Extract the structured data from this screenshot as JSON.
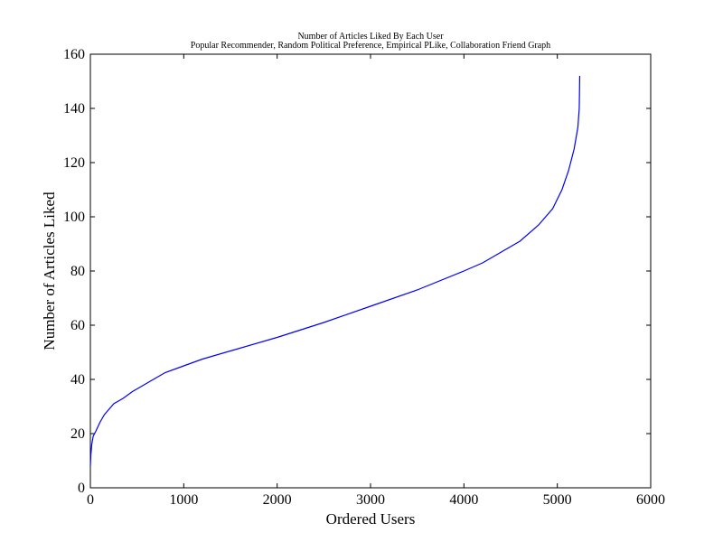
{
  "chart_data": {
    "type": "line",
    "title": "Number of Articles Liked By Each User",
    "subtitle": "Popular Recommender, Random Political Preference, Empirical PLike, Collaboration Friend Graph",
    "xlabel": "Ordered Users",
    "ylabel": "Number of Articles Liked",
    "xlim": [
      0,
      6000
    ],
    "ylim": [
      0,
      160
    ],
    "x_ticks": [
      "0",
      "1000",
      "2000",
      "3000",
      "4000",
      "5000",
      "6000"
    ],
    "y_ticks": [
      "0",
      "20",
      "40",
      "60",
      "80",
      "100",
      "120",
      "140",
      "160"
    ],
    "grid": false,
    "line_color": "#0000ff",
    "series": [
      {
        "values": [
          {
            "x": 0,
            "y": 8
          },
          {
            "x": 5,
            "y": 12
          },
          {
            "x": 15,
            "y": 16
          },
          {
            "x": 30,
            "y": 19
          },
          {
            "x": 60,
            "y": 21
          },
          {
            "x": 100,
            "y": 24
          },
          {
            "x": 150,
            "y": 27
          },
          {
            "x": 200,
            "y": 29
          },
          {
            "x": 250,
            "y": 31
          },
          {
            "x": 350,
            "y": 33
          },
          {
            "x": 450,
            "y": 35.5
          },
          {
            "x": 600,
            "y": 38.5
          },
          {
            "x": 800,
            "y": 42.5
          },
          {
            "x": 1000,
            "y": 45
          },
          {
            "x": 1200,
            "y": 47.5
          },
          {
            "x": 1500,
            "y": 50.5
          },
          {
            "x": 2000,
            "y": 55.5
          },
          {
            "x": 2500,
            "y": 61
          },
          {
            "x": 3000,
            "y": 67
          },
          {
            "x": 3500,
            "y": 73
          },
          {
            "x": 4000,
            "y": 80
          },
          {
            "x": 4200,
            "y": 83
          },
          {
            "x": 4400,
            "y": 87
          },
          {
            "x": 4600,
            "y": 91
          },
          {
            "x": 4800,
            "y": 97
          },
          {
            "x": 4950,
            "y": 103
          },
          {
            "x": 5050,
            "y": 110
          },
          {
            "x": 5120,
            "y": 117
          },
          {
            "x": 5180,
            "y": 125
          },
          {
            "x": 5220,
            "y": 133
          },
          {
            "x": 5235,
            "y": 140
          },
          {
            "x": 5240,
            "y": 152
          }
        ]
      }
    ]
  }
}
